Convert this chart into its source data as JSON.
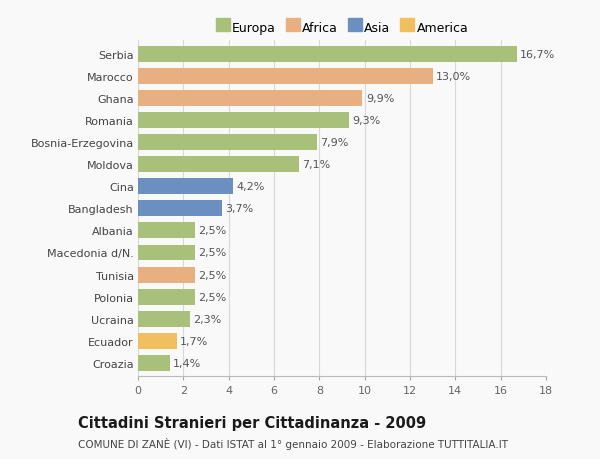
{
  "countries": [
    "Serbia",
    "Marocco",
    "Ghana",
    "Romania",
    "Bosnia-Erzegovina",
    "Moldova",
    "Cina",
    "Bangladesh",
    "Albania",
    "Macedonia d/N.",
    "Tunisia",
    "Polonia",
    "Ucraina",
    "Ecuador",
    "Croazia"
  ],
  "values": [
    16.7,
    13.0,
    9.9,
    9.3,
    7.9,
    7.1,
    4.2,
    3.7,
    2.5,
    2.5,
    2.5,
    2.5,
    2.3,
    1.7,
    1.4
  ],
  "labels": [
    "16,7%",
    "13,0%",
    "9,9%",
    "9,3%",
    "7,9%",
    "7,1%",
    "4,2%",
    "3,7%",
    "2,5%",
    "2,5%",
    "2,5%",
    "2,5%",
    "2,3%",
    "1,7%",
    "1,4%"
  ],
  "bar_colors": [
    "#a8c07a",
    "#e8b080",
    "#e8b080",
    "#a8c07a",
    "#a8c07a",
    "#a8c07a",
    "#6a8fc0",
    "#6a8fc0",
    "#a8c07a",
    "#a8c07a",
    "#e8b080",
    "#a8c07a",
    "#a8c07a",
    "#f0c060",
    "#a8c07a"
  ],
  "legend_labels": [
    "Europa",
    "Africa",
    "Asia",
    "America"
  ],
  "legend_colors": [
    "#a8c07a",
    "#e8b080",
    "#6a8fc0",
    "#f0c060"
  ],
  "title": "Cittadini Stranieri per Cittadinanza - 2009",
  "subtitle": "COMUNE DI ZANÈ (VI) - Dati ISTAT al 1° gennaio 2009 - Elaborazione TUTTITALIA.IT",
  "xlim": [
    0,
    18
  ],
  "xticks": [
    0,
    2,
    4,
    6,
    8,
    10,
    12,
    14,
    16,
    18
  ],
  "background_color": "#f9f9f9",
  "grid_color": "#d8d8d8",
  "bar_height": 0.72,
  "label_fontsize": 8,
  "tick_fontsize": 8,
  "ylabel_fontsize": 8,
  "legend_fontsize": 9,
  "title_fontsize": 10.5,
  "subtitle_fontsize": 7.5
}
